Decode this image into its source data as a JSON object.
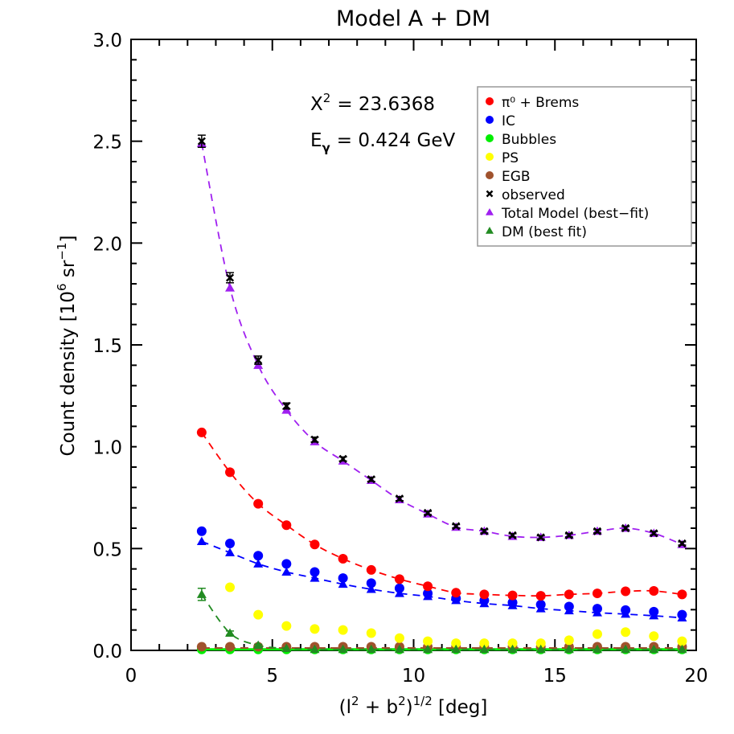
{
  "chart_data": {
    "type": "scatter",
    "title": "Model A + DM",
    "xlabel": "(l² + b²)^1/2 [deg]",
    "ylabel": "Count density [10⁶ sr⁻¹]",
    "xlim": [
      0,
      20
    ],
    "ylim": [
      0,
      3.0
    ],
    "x_ticks": [
      "0",
      "5",
      "10",
      "15",
      "20"
    ],
    "y_ticks": [
      "0.0",
      "0.5",
      "1.0",
      "1.5",
      "2.0",
      "2.5",
      "3.0"
    ],
    "grid": false,
    "legend_position": "upper right",
    "annotations": {
      "chi2_label": "X",
      "chi2_sup": "2",
      "chi2_value": "= 23.6368",
      "energy_label": "E",
      "energy_sub": "γ",
      "energy_value": "= 0.424 GeV"
    },
    "x": [
      2.5,
      3.5,
      4.5,
      5.5,
      6.5,
      7.5,
      8.5,
      9.5,
      10.5,
      11.5,
      12.5,
      13.5,
      14.5,
      15.5,
      16.5,
      17.5,
      18.5,
      19.5
    ],
    "series": [
      {
        "name": "π⁰ + Brems",
        "marker": "circle",
        "color": "#ff0000",
        "dashed_fit": true,
        "values": [
          1.07,
          0.875,
          0.72,
          0.615,
          0.52,
          0.45,
          0.395,
          0.35,
          0.315,
          0.283,
          0.275,
          0.27,
          0.268,
          0.275,
          0.28,
          0.29,
          0.292,
          0.275
        ]
      },
      {
        "name": "IC",
        "marker": "circle",
        "color": "#0000ff",
        "dashed_fit": true,
        "values": [
          0.585,
          0.525,
          0.465,
          0.425,
          0.385,
          0.355,
          0.33,
          0.305,
          0.28,
          0.255,
          0.245,
          0.235,
          0.225,
          0.215,
          0.205,
          0.198,
          0.19,
          0.175
        ],
        "fit_values": [
          0.535,
          0.48,
          0.425,
          0.385,
          0.355,
          0.325,
          0.3,
          0.28,
          0.265,
          0.245,
          0.23,
          0.22,
          0.205,
          0.195,
          0.185,
          0.178,
          0.17,
          0.16
        ]
      },
      {
        "name": "Bubbles",
        "marker": "circle",
        "color": "#00ee00",
        "dashed_fit": false,
        "values": [
          0.005,
          0.005,
          0.005,
          0.005,
          0.005,
          0.005,
          0.005,
          0.005,
          0.005,
          0.005,
          0.005,
          0.005,
          0.005,
          0.005,
          0.005,
          0.005,
          0.005,
          0.005
        ]
      },
      {
        "name": "PS",
        "marker": "circle",
        "color": "#ffff00",
        "dashed_fit": false,
        "values": [
          null,
          0.31,
          0.175,
          0.12,
          0.105,
          0.1,
          0.085,
          0.06,
          0.045,
          0.035,
          0.035,
          0.035,
          0.035,
          0.05,
          0.08,
          0.09,
          0.07,
          0.045
        ]
      },
      {
        "name": "EGB",
        "marker": "circle",
        "color": "#a0522d",
        "dashed_fit": false,
        "values": [
          0.018,
          0.018,
          0.018,
          0.018,
          0.018,
          0.018,
          0.018,
          0.018,
          0.018,
          0.018,
          0.018,
          0.018,
          0.018,
          0.018,
          0.018,
          0.018,
          0.018,
          0.018
        ]
      },
      {
        "name": "observed",
        "marker": "x",
        "color": "#000000",
        "dashed_fit": false,
        "values": [
          2.5,
          1.83,
          1.425,
          1.2,
          1.035,
          0.94,
          0.84,
          0.745,
          0.675,
          0.61,
          0.585,
          0.565,
          0.555,
          0.565,
          0.585,
          0.6,
          0.575,
          0.525
        ],
        "error": [
          0.03,
          0.025,
          0.02,
          0.015,
          0.012,
          0.01,
          0.01,
          0.01,
          0.008,
          0.008,
          0.008,
          0.008,
          0.008,
          0.008,
          0.008,
          0.008,
          0.008,
          0.008
        ]
      },
      {
        "name": "Total Model (best-fit)",
        "marker": "triangle",
        "color": "#a020f0",
        "dashed_fit": true,
        "values": [
          2.49,
          1.78,
          1.4,
          1.18,
          1.025,
          0.93,
          0.835,
          0.74,
          0.67,
          0.605,
          0.585,
          0.56,
          0.555,
          0.565,
          0.585,
          0.6,
          0.575,
          0.52
        ]
      },
      {
        "name": "DM (best fit)",
        "marker": "triangle",
        "color": "#228b22",
        "dashed_fit": true,
        "values": [
          0.275,
          0.085,
          0.025,
          0.01,
          0.005,
          0.005,
          0.005,
          0.005,
          0.005,
          0.005,
          0.005,
          0.005,
          0.005,
          0.005,
          0.005,
          0.005,
          0.005,
          0.005
        ],
        "error": [
          0.03,
          0.01,
          0.005,
          0.0,
          0.0,
          0.0,
          0.0,
          0.0,
          0.0,
          0.0,
          0.0,
          0.0,
          0.0,
          0.0,
          0.0,
          0.0,
          0.0,
          0.0
        ]
      }
    ]
  },
  "legend": {
    "items": [
      {
        "label": "π⁰ + Brems",
        "marker": "circle",
        "color": "#ff0000"
      },
      {
        "label": "IC",
        "marker": "circle",
        "color": "#0000ff"
      },
      {
        "label": "Bubbles",
        "marker": "circle",
        "color": "#00ee00"
      },
      {
        "label": "PS",
        "marker": "circle",
        "color": "#ffff00"
      },
      {
        "label": "EGB",
        "marker": "circle",
        "color": "#a0522d"
      },
      {
        "label": "observed",
        "marker": "x",
        "color": "#000000"
      },
      {
        "label": "Total Model (best−fit)",
        "marker": "triangle",
        "color": "#a020f0"
      },
      {
        "label": "DM (best fit)",
        "marker": "triangle",
        "color": "#228b22"
      }
    ]
  }
}
